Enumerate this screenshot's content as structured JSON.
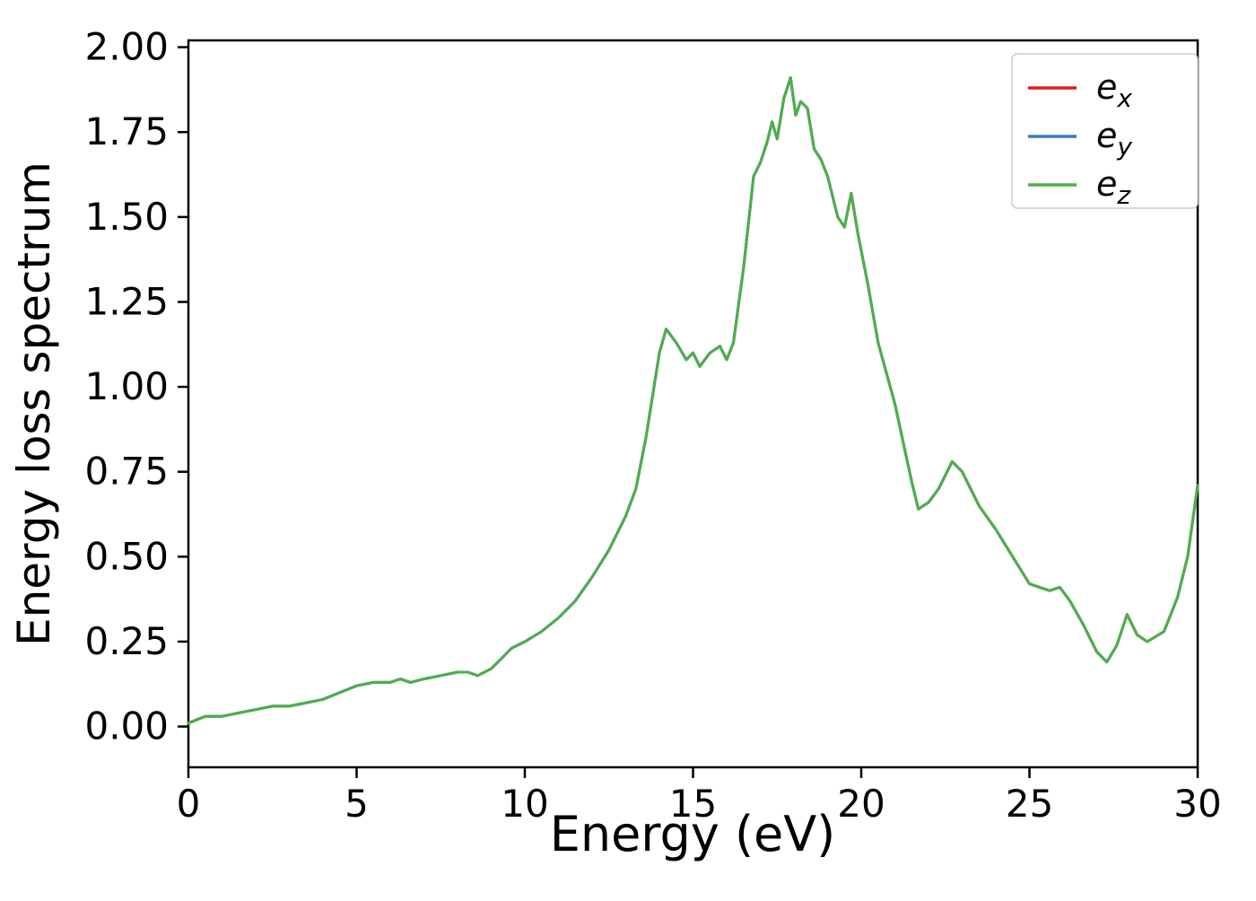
{
  "chart_data": {
    "type": "line",
    "title": "",
    "xlabel": "Energy (eV)",
    "ylabel": "Energy loss spectrum",
    "xlim": [
      0,
      30
    ],
    "ylim": [
      -0.12,
      2.02
    ],
    "xticks": [
      0,
      5,
      10,
      15,
      20,
      25,
      30
    ],
    "xtick_labels": [
      "0",
      "5",
      "10",
      "15",
      "20",
      "25",
      "30"
    ],
    "yticks": [
      0,
      0.25,
      0.5,
      0.75,
      1.0,
      1.25,
      1.5,
      1.75,
      2.0
    ],
    "ytick_labels": [
      "0.00",
      "0.25",
      "0.50",
      "0.75",
      "1.00",
      "1.25",
      "1.50",
      "1.75",
      "2.00"
    ],
    "grid": false,
    "legend_position": "upper right",
    "note": "all three series coincide exactly; only the topmost (e_z, green) curve is visible",
    "x": [
      0,
      0.5,
      1,
      1.5,
      2,
      2.5,
      3,
      3.5,
      4,
      4.5,
      5,
      5.5,
      6,
      6.3,
      6.6,
      7,
      7.5,
      8,
      8.3,
      8.6,
      9,
      9.3,
      9.6,
      10,
      10.5,
      11,
      11.5,
      12,
      12.5,
      13,
      13.3,
      13.6,
      14,
      14.2,
      14.5,
      14.8,
      15,
      15.2,
      15.5,
      15.8,
      16,
      16.2,
      16.5,
      16.8,
      17,
      17.2,
      17.35,
      17.5,
      17.7,
      17.9,
      18.05,
      18.2,
      18.4,
      18.6,
      18.8,
      19,
      19.3,
      19.5,
      19.7,
      19.9,
      20.2,
      20.5,
      21,
      21.5,
      21.7,
      22,
      22.3,
      22.7,
      23,
      23.5,
      24,
      24.5,
      25,
      25.3,
      25.6,
      25.9,
      26.2,
      26.6,
      27,
      27.3,
      27.6,
      27.9,
      28.2,
      28.5,
      29,
      29.4,
      29.7,
      30
    ],
    "series": [
      {
        "name": "e_x",
        "color": "#e41a1c",
        "values": [
          0.01,
          0.03,
          0.03,
          0.04,
          0.05,
          0.06,
          0.06,
          0.07,
          0.08,
          0.1,
          0.12,
          0.13,
          0.13,
          0.14,
          0.13,
          0.14,
          0.15,
          0.16,
          0.16,
          0.15,
          0.17,
          0.2,
          0.23,
          0.25,
          0.28,
          0.32,
          0.37,
          0.44,
          0.52,
          0.62,
          0.7,
          0.85,
          1.1,
          1.17,
          1.13,
          1.08,
          1.1,
          1.06,
          1.1,
          1.12,
          1.08,
          1.13,
          1.35,
          1.62,
          1.66,
          1.72,
          1.78,
          1.73,
          1.85,
          1.91,
          1.8,
          1.84,
          1.82,
          1.7,
          1.67,
          1.62,
          1.5,
          1.47,
          1.57,
          1.45,
          1.3,
          1.13,
          0.95,
          0.72,
          0.64,
          0.66,
          0.7,
          0.78,
          0.75,
          0.65,
          0.58,
          0.5,
          0.42,
          0.41,
          0.4,
          0.41,
          0.37,
          0.3,
          0.22,
          0.19,
          0.24,
          0.33,
          0.27,
          0.25,
          0.28,
          0.38,
          0.5,
          0.71
        ]
      },
      {
        "name": "e_y",
        "color": "#377eb8",
        "values": [
          0.01,
          0.03,
          0.03,
          0.04,
          0.05,
          0.06,
          0.06,
          0.07,
          0.08,
          0.1,
          0.12,
          0.13,
          0.13,
          0.14,
          0.13,
          0.14,
          0.15,
          0.16,
          0.16,
          0.15,
          0.17,
          0.2,
          0.23,
          0.25,
          0.28,
          0.32,
          0.37,
          0.44,
          0.52,
          0.62,
          0.7,
          0.85,
          1.1,
          1.17,
          1.13,
          1.08,
          1.1,
          1.06,
          1.1,
          1.12,
          1.08,
          1.13,
          1.35,
          1.62,
          1.66,
          1.72,
          1.78,
          1.73,
          1.85,
          1.91,
          1.8,
          1.84,
          1.82,
          1.7,
          1.67,
          1.62,
          1.5,
          1.47,
          1.57,
          1.45,
          1.3,
          1.13,
          0.95,
          0.72,
          0.64,
          0.66,
          0.7,
          0.78,
          0.75,
          0.65,
          0.58,
          0.5,
          0.42,
          0.41,
          0.4,
          0.41,
          0.37,
          0.3,
          0.22,
          0.19,
          0.24,
          0.33,
          0.27,
          0.25,
          0.28,
          0.38,
          0.5,
          0.71
        ]
      },
      {
        "name": "e_z",
        "color": "#4daf4a",
        "values": [
          0.01,
          0.03,
          0.03,
          0.04,
          0.05,
          0.06,
          0.06,
          0.07,
          0.08,
          0.1,
          0.12,
          0.13,
          0.13,
          0.14,
          0.13,
          0.14,
          0.15,
          0.16,
          0.16,
          0.15,
          0.17,
          0.2,
          0.23,
          0.25,
          0.28,
          0.32,
          0.37,
          0.44,
          0.52,
          0.62,
          0.7,
          0.85,
          1.1,
          1.17,
          1.13,
          1.08,
          1.1,
          1.06,
          1.1,
          1.12,
          1.08,
          1.13,
          1.35,
          1.62,
          1.66,
          1.72,
          1.78,
          1.73,
          1.85,
          1.91,
          1.8,
          1.84,
          1.82,
          1.7,
          1.67,
          1.62,
          1.5,
          1.47,
          1.57,
          1.45,
          1.3,
          1.13,
          0.95,
          0.72,
          0.64,
          0.66,
          0.7,
          0.78,
          0.75,
          0.65,
          0.58,
          0.5,
          0.42,
          0.41,
          0.4,
          0.41,
          0.37,
          0.3,
          0.22,
          0.19,
          0.24,
          0.33,
          0.27,
          0.25,
          0.28,
          0.38,
          0.5,
          0.71
        ]
      }
    ]
  }
}
